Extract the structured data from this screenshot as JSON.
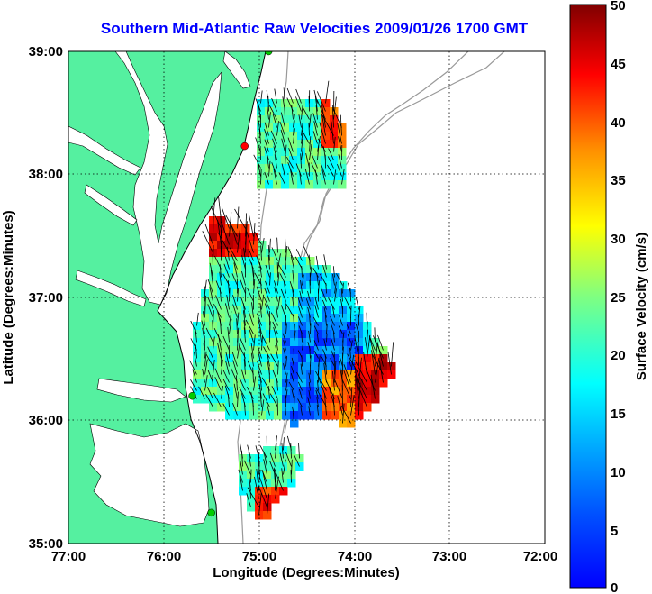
{
  "title": "Southern Mid-Atlantic Raw Velocities 2009/01/26 1700 GMT",
  "x_axis": {
    "label": "Longitude (Degrees:Minutes)",
    "ticks": [
      "77:00",
      "76:00",
      "75:00",
      "74:00",
      "73:00",
      "72:00"
    ]
  },
  "y_axis": {
    "label": "Latitude (Degrees:Minutes)",
    "ticks": [
      "39:00",
      "38:00",
      "37:00",
      "36:00",
      "35:00"
    ]
  },
  "colorbar": {
    "label": "Surface Velocity (cm/s)",
    "ticks": [
      "50",
      "45",
      "40",
      "35",
      "30",
      "25",
      "20",
      "15",
      "10",
      "5",
      "0"
    ],
    "min": 0,
    "max": 50,
    "colormap": "jet"
  },
  "colors": {
    "land": "#55f0a0",
    "title": "#0000ff",
    "station_online": "#00cc00",
    "station_offline": "#ff0000"
  },
  "stations": [
    {
      "lon": -74.9,
      "lat": 39.0,
      "status": "online"
    },
    {
      "lon": -75.15,
      "lat": 38.23,
      "status": "offline"
    },
    {
      "lon": -75.7,
      "lat": 36.2,
      "status": "online"
    },
    {
      "lon": -75.5,
      "lat": 35.25,
      "status": "online"
    }
  ]
}
